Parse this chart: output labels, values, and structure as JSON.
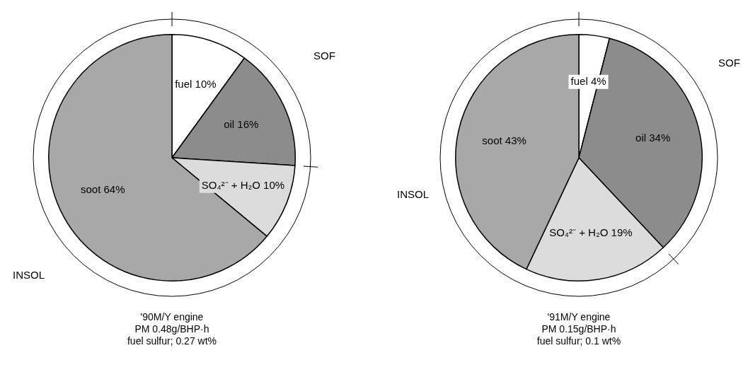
{
  "chart_data": [
    {
      "type": "pie",
      "categories": [
        "fuel",
        "oil",
        "SO₄²⁻ + H₂O",
        "soot"
      ],
      "values": [
        10,
        16,
        10,
        64
      ],
      "value_labels": [
        "10%",
        "16%",
        "10%",
        "64%"
      ],
      "colors": [
        "#ffffff",
        "#8c8c8c",
        "#dcdcdc",
        "#a8a8a8"
      ],
      "annotations": [
        "SOF",
        "INSOL",
        "'90M/Y engine",
        "PM 0.48g/BHP·h",
        "fuel sulfur; 0.27 wt%"
      ]
    },
    {
      "type": "pie",
      "categories": [
        "fuel",
        "oil",
        "SO₄²⁻ + H₂O",
        "soot"
      ],
      "values": [
        4,
        34,
        19,
        43
      ],
      "value_labels": [
        "4%",
        "34%",
        "19%",
        "43%"
      ],
      "colors": [
        "#ffffff",
        "#8c8c8c",
        "#dcdcdc",
        "#a8a8a8"
      ],
      "annotations": [
        "SOF",
        "INSOL",
        "'91M/Y engine",
        "PM 0.15g/BHP·h",
        "fuel sulfur; 0.1 wt%"
      ]
    }
  ]
}
